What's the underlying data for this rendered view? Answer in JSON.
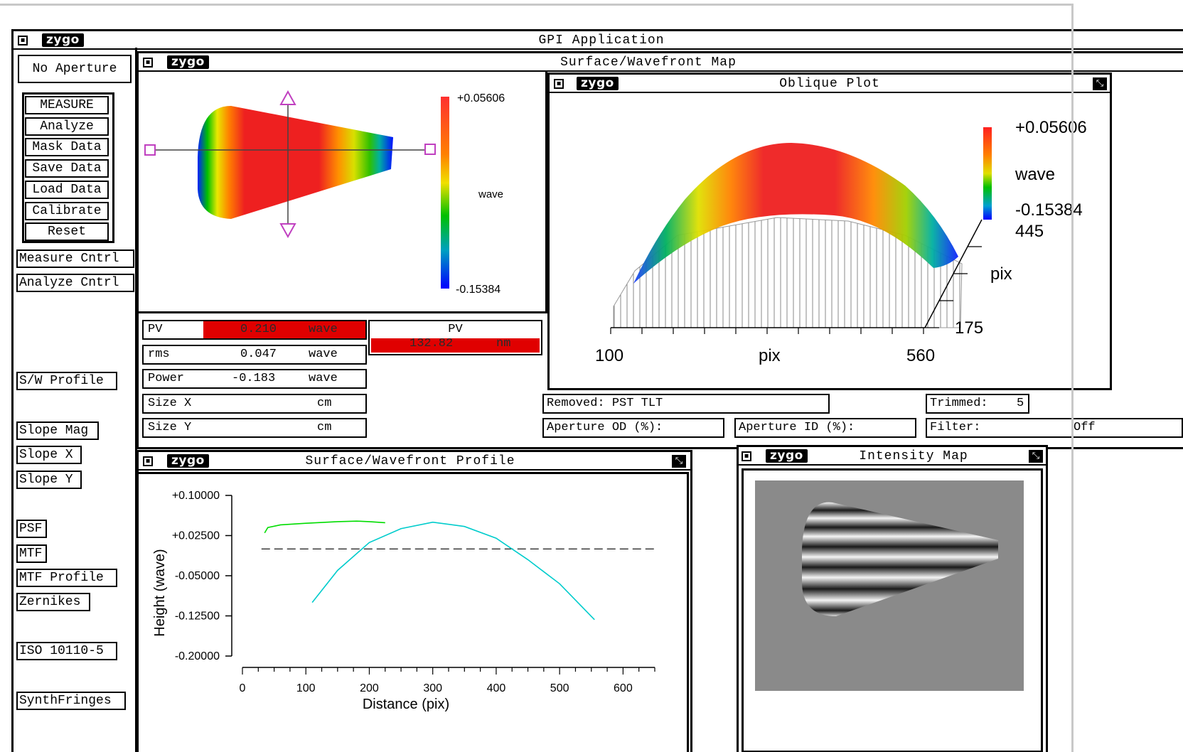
{
  "app": {
    "title": "GPI Application",
    "logo_text": "zygo"
  },
  "sidebar": {
    "aperture": "No Aperture",
    "primary": [
      "MEASURE",
      "Analyze",
      "Mask Data",
      "Save Data",
      "Load Data",
      "Calibrate",
      "Reset"
    ],
    "measure_cntrl": "Measure Cntrl",
    "analyze_cntrl": "Analyze Cntrl",
    "sw_profile": "S/W Profile",
    "slope_mag": "Slope Mag",
    "slope_x": "Slope X",
    "slope_y": "Slope Y",
    "psf": "PSF",
    "mtf": "MTF",
    "mtf_profile": "MTF Profile",
    "zernikes": "Zernikes",
    "iso": "ISO 10110-5",
    "synth": "SynthFringes"
  },
  "surface_map": {
    "title": "Surface/Wavefront Map",
    "scale_max": "+0.05606",
    "scale_min": "-0.15384",
    "unit": "wave"
  },
  "results": {
    "pv": {
      "label": "PV",
      "value": "0.210",
      "unit": "wave"
    },
    "rms": {
      "label": "rms",
      "value": "0.047",
      "unit": "wave"
    },
    "power": {
      "label": "Power",
      "value": "-0.183",
      "unit": "wave"
    },
    "size_x": {
      "label": "Size X",
      "value": "",
      "unit": "cm"
    },
    "size_y": {
      "label": "Size Y",
      "value": "",
      "unit": "cm"
    },
    "pv_nm": {
      "label": "PV",
      "value": "132.82",
      "unit": "nm"
    }
  },
  "oblique": {
    "title": "Oblique Plot",
    "scale_max": "+0.05606",
    "unit": "wave",
    "scale_min": "-0.15384",
    "y_top": "445",
    "y_label": "pix",
    "y_bottom": "175",
    "x_left": "100",
    "x_label": "pix",
    "x_right": "560"
  },
  "status": {
    "removed": "Removed: PST TLT",
    "trimmed_label": "Trimmed:",
    "trimmed_value": "5",
    "aperture_od": "Aperture OD (%):",
    "aperture_id": "Aperture ID (%):",
    "filter_label": "Filter:",
    "filter_value": "Off"
  },
  "profile": {
    "title": "Surface/Wavefront Profile"
  },
  "intensity": {
    "title": "Intensity Map"
  },
  "chart_data": {
    "type": "line",
    "title": "",
    "xlabel": "Distance (pix)",
    "ylabel": "Height (wave)",
    "xlim": [
      0,
      650
    ],
    "ylim": [
      -0.2,
      0.1
    ],
    "x_ticks": [
      "0",
      "100",
      "200",
      "300",
      "400",
      "500",
      "600"
    ],
    "y_ticks": [
      "+0.10000",
      "+0.02500",
      "-0.05000",
      "-0.12500",
      "-0.20000"
    ],
    "y_tick_values": [
      0.1,
      0.025,
      -0.05,
      -0.125,
      -0.2
    ],
    "reference_line_y": 0.0,
    "series": [
      {
        "color": "#00dd00",
        "x": [
          35,
          40,
          60,
          100,
          150,
          180,
          200,
          225
        ],
        "y": [
          0.03,
          0.04,
          0.045,
          0.048,
          0.051,
          0.052,
          0.051,
          0.049
        ]
      },
      {
        "color": "#00cccc",
        "x": [
          110,
          150,
          200,
          250,
          300,
          350,
          400,
          450,
          500,
          555
        ],
        "y": [
          -0.1,
          -0.04,
          0.012,
          0.038,
          0.05,
          0.042,
          0.02,
          -0.02,
          -0.065,
          -0.132
        ]
      }
    ]
  }
}
